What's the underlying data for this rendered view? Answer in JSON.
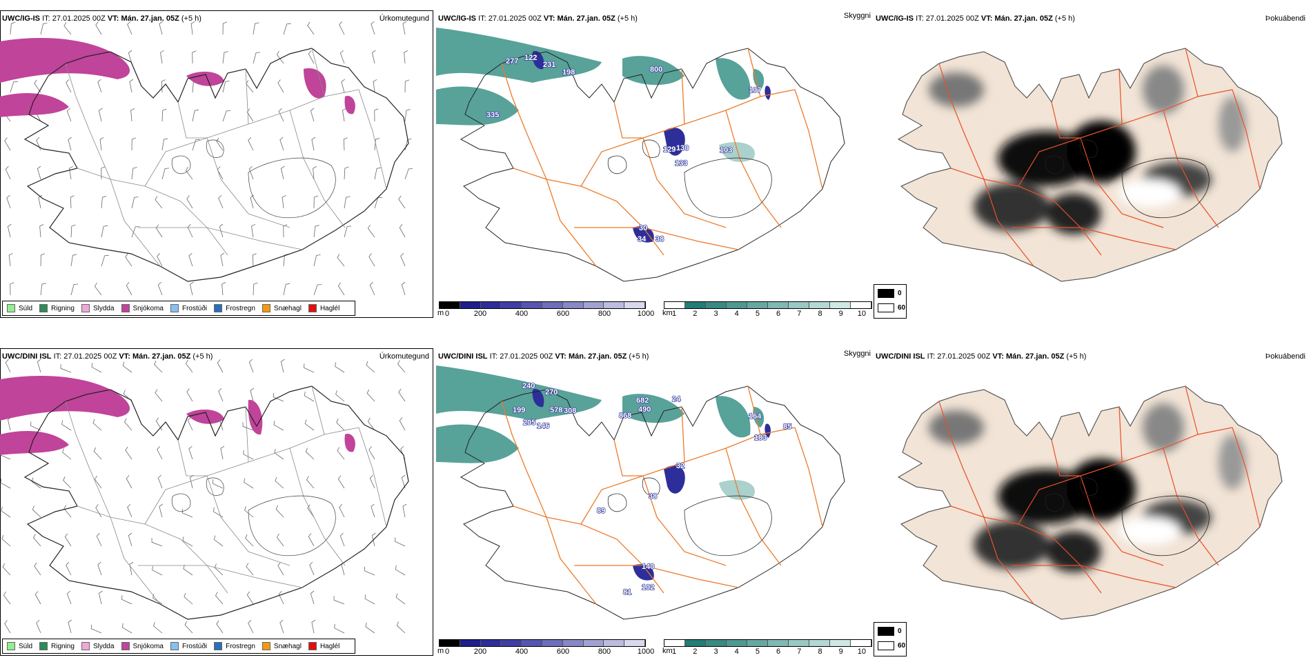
{
  "rows": [
    {
      "model": "UWC/IG-IS",
      "it_label": "IT:",
      "it": "27.01.2025 00Z",
      "vt_label": "VT:",
      "vt": "Mán. 27.jan. 05Z",
      "lead": "(+5 h)",
      "ceiling_labels": [
        "277",
        "122",
        "231",
        "198",
        "800",
        "107",
        "335",
        "129",
        "130",
        "133",
        "103",
        "30",
        "34",
        "38"
      ]
    },
    {
      "model": "UWC/DINI ISL",
      "it_label": "IT:",
      "it": "27.01.2025 00Z",
      "vt_label": "VT:",
      "vt": "Mán. 27.jan. 05Z",
      "lead": "(+5 h)",
      "ceiling_labels": [
        "240",
        "270",
        "199",
        "578",
        "308",
        "205",
        "146",
        "868",
        "682",
        "490",
        "24",
        "164",
        "183",
        "85",
        "32",
        "89",
        "38",
        "140",
        "102",
        "81"
      ]
    }
  ],
  "panels": {
    "precip_type_title": "Úrkomutegund",
    "visibility_title": "Skyggni",
    "fog_title": "Þokuábendi"
  },
  "precip_legend": [
    {
      "label": "Súld",
      "color": "#90ee90"
    },
    {
      "label": "Rigning",
      "color": "#2e8b57"
    },
    {
      "label": "Slydda",
      "color": "#f0a8d8"
    },
    {
      "label": "Snjókoma",
      "color": "#c0449a"
    },
    {
      "label": "Frostúði",
      "color": "#87c0f0"
    },
    {
      "label": "Frostregn",
      "color": "#2a6fb8"
    },
    {
      "label": "Snæhagl",
      "color": "#f59a10"
    },
    {
      "label": "Haglél",
      "color": "#e01010"
    }
  ],
  "ceiling_scale": {
    "unit": "m",
    "ticks": [
      "0",
      "200",
      "400",
      "600",
      "800",
      "1000"
    ],
    "colors": [
      "#000000",
      "#1e1e8c",
      "#2e2e9a",
      "#3f3fa6",
      "#5656b0",
      "#6e6eba",
      "#8888c6",
      "#a2a2d2",
      "#bcbcde",
      "#d8d8ee"
    ]
  },
  "visibility_scale": {
    "unit": "km",
    "ticks": [
      "1",
      "2",
      "3",
      "4",
      "5",
      "6",
      "7",
      "8",
      "9",
      "10"
    ],
    "colors": [
      "#ffffff",
      "#247c76",
      "#3a8a84",
      "#509892",
      "#68a8a2",
      "#80b8b2",
      "#9ac8c2",
      "#b4d8d4",
      "#d0e8e4",
      "#ffffff"
    ]
  },
  "fog_legend": [
    {
      "label": "0",
      "color": "#000000"
    },
    {
      "label": "60",
      "color": "#ffffff"
    }
  ],
  "colors": {
    "roads": "#ec7a2a",
    "land_fog": "#f2e4d6",
    "snow": "#c0449a",
    "teal": "#2e8b80"
  }
}
